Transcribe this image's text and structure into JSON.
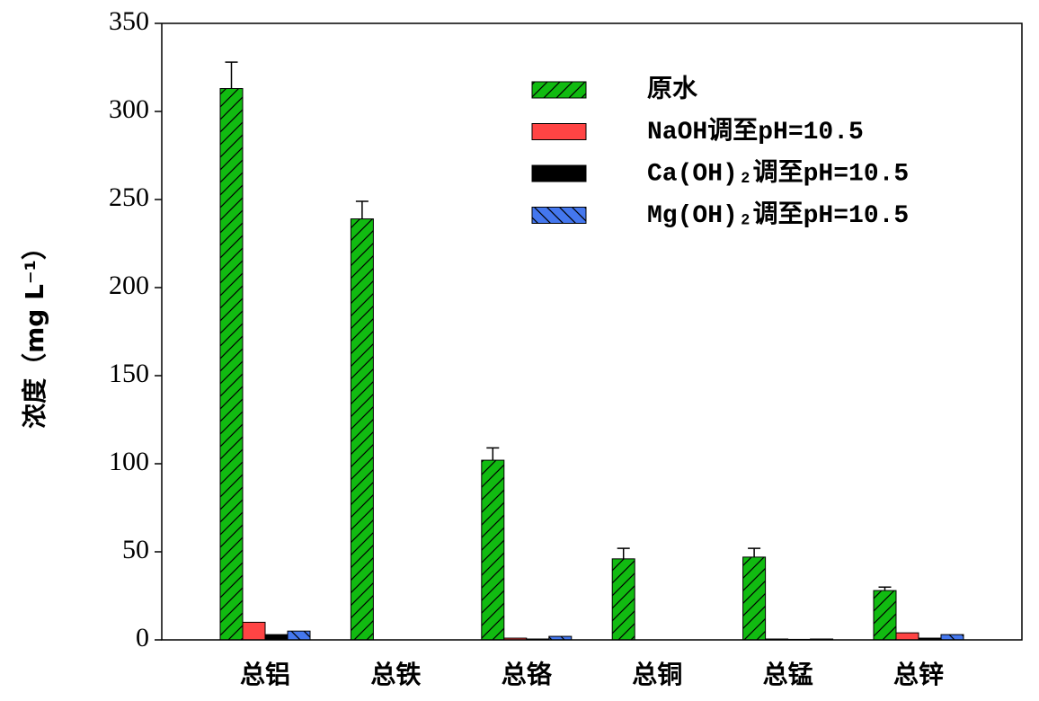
{
  "chart_data": {
    "type": "bar",
    "ylabel": "浓度（mg L⁻¹）",
    "categories": [
      "总铝",
      "总铁",
      "总铬",
      "总铜",
      "总锰",
      "总锌"
    ],
    "series": [
      {
        "name": "原水",
        "color": "#11bb11",
        "hatch": "/",
        "values": [
          313,
          239,
          102,
          46,
          47,
          28
        ],
        "errors": [
          15,
          10,
          7,
          6,
          5,
          2
        ]
      },
      {
        "name": "NaOH调至pH=10.5",
        "color": "#ff4444",
        "values": [
          10,
          0,
          1,
          0,
          0.5,
          4
        ]
      },
      {
        "name": "Ca(OH)₂调至pH=10.5",
        "color": "#000000",
        "values": [
          3,
          0,
          0.5,
          0,
          0.3,
          1
        ]
      },
      {
        "name": "Mg(OH)₂调至pH=10.5",
        "color": "#4477ee",
        "hatch": "\\",
        "values": [
          5,
          0,
          2,
          0,
          0.5,
          3
        ]
      }
    ],
    "ylim": [
      0,
      350
    ],
    "yticks": [
      0,
      50,
      100,
      150,
      200,
      250,
      300,
      350
    ]
  }
}
